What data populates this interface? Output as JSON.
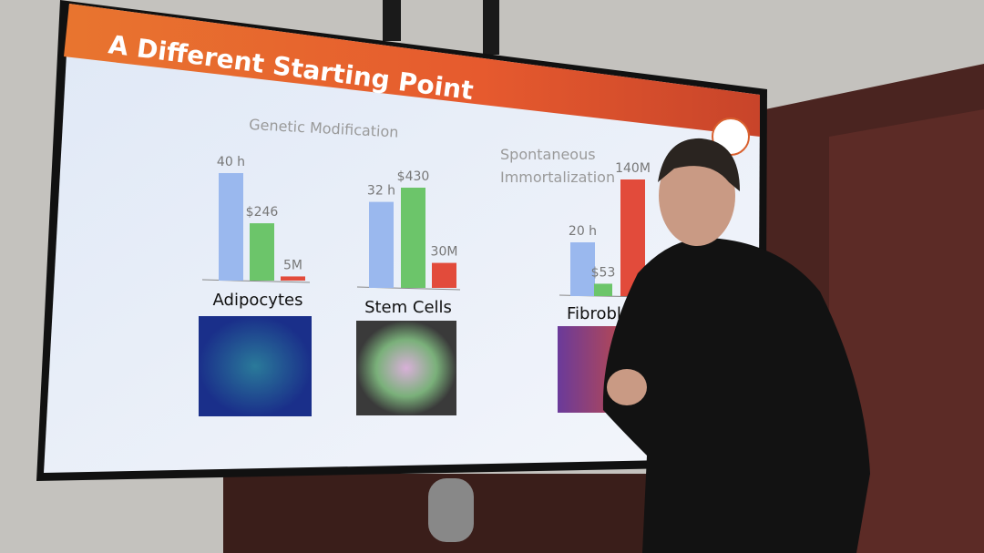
{
  "slide": {
    "title": "A Different Starting Point",
    "section_labels": [
      "Genetic Modification",
      "Spontaneous",
      "Immortalization"
    ],
    "bar_colors": [
      "#9ab8ee",
      "#6cc56a",
      "#e24b3b"
    ],
    "groups": [
      {
        "name": "Adipocytes",
        "bars": [
          {
            "value": 40,
            "label": "40 h"
          },
          {
            "value": 246,
            "label": "$246"
          },
          {
            "value": 5000000,
            "label": "5M"
          }
        ]
      },
      {
        "name": "Stem Cells",
        "bars": [
          {
            "value": 32,
            "label": "32 h"
          },
          {
            "value": 430,
            "label": "$430"
          },
          {
            "value": 30000000,
            "label": "30M"
          }
        ]
      },
      {
        "name": "Fibroblasts",
        "bars": [
          {
            "value": 20,
            "label": "20 h"
          },
          {
            "value": 53,
            "label": "$53"
          },
          {
            "value": 140000000,
            "label": "140M"
          }
        ]
      }
    ]
  }
}
